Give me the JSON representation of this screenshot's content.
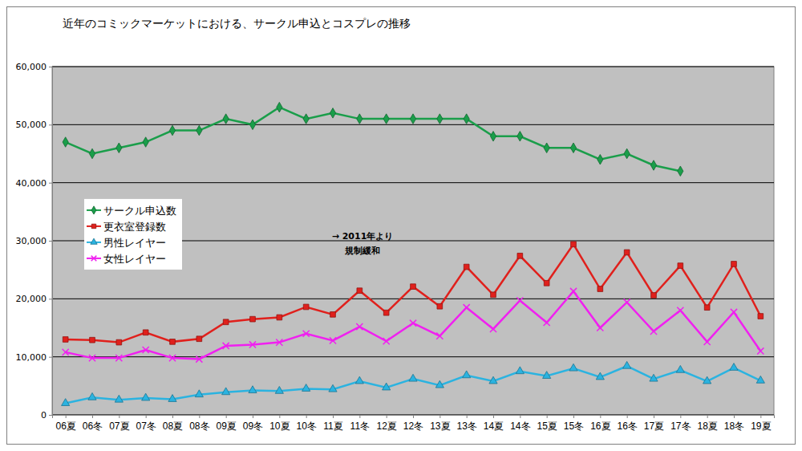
{
  "chart_data": {
    "type": "line",
    "title": "近年のコミックマーケットにおける、サークル申込とコスプレの推移",
    "categories": [
      "06夏",
      "06冬",
      "07夏",
      "07冬",
      "08夏",
      "08冬",
      "09夏",
      "09冬",
      "10夏",
      "10冬",
      "11夏",
      "11冬",
      "12夏",
      "12冬",
      "13夏",
      "13冬",
      "14夏",
      "14冬",
      "15夏",
      "15冬",
      "16夏",
      "16冬",
      "17夏",
      "17冬",
      "18夏",
      "18冬",
      "19夏"
    ],
    "series": [
      {
        "name": "サークル申込数",
        "color": "#1a9e4a",
        "marker": "diamond",
        "values": [
          47000,
          45000,
          46000,
          47000,
          49000,
          49000,
          51000,
          50000,
          53000,
          51000,
          52000,
          51000,
          51000,
          51000,
          51000,
          51000,
          48000,
          48000,
          46000,
          46000,
          44000,
          45000,
          43000,
          42000,
          null,
          null,
          null
        ]
      },
      {
        "name": "更衣室登録数",
        "color": "#e0201c",
        "marker": "square",
        "values": [
          13000,
          12900,
          12500,
          14200,
          12600,
          13100,
          16000,
          16500,
          16800,
          18600,
          17300,
          21400,
          17600,
          22100,
          18700,
          25500,
          20700,
          27400,
          22700,
          29400,
          21700,
          28000,
          20600,
          25700,
          18500,
          26000,
          17000
        ]
      },
      {
        "name": "男性レイヤー",
        "color": "#2bb3e0",
        "marker": "triangle",
        "values": [
          2000,
          3000,
          2600,
          2900,
          2700,
          3500,
          3900,
          4200,
          4100,
          4500,
          4400,
          5800,
          4700,
          6200,
          5100,
          6800,
          5800,
          7500,
          6700,
          8000,
          6500,
          8400,
          6200,
          7700,
          5800,
          8100,
          5900
        ]
      },
      {
        "name": "女性レイヤー",
        "color": "#f020f0",
        "marker": "cross",
        "values": [
          10800,
          9800,
          9800,
          11200,
          9800,
          9600,
          11900,
          12100,
          12500,
          14000,
          12800,
          15200,
          12700,
          15800,
          13600,
          18500,
          14800,
          19700,
          15900,
          21300,
          15000,
          19400,
          14400,
          18000,
          12600,
          17700,
          11000
        ]
      }
    ],
    "annotations": [
      "→ 2011年より",
      "規制緩和"
    ],
    "ylim": [
      0,
      60000
    ],
    "yticks": [
      0,
      {
        "value": 10000,
        "label": "10,000"
      },
      {
        "value": 20000,
        "label": "20,000"
      },
      {
        "value": 30000,
        "label": "30,000"
      },
      {
        "value": 40000,
        "label": "40,000"
      },
      {
        "value": 50000,
        "label": "50,000"
      },
      {
        "value": 60000,
        "label": "60,000"
      }
    ],
    "grid": true,
    "legend": "left"
  }
}
